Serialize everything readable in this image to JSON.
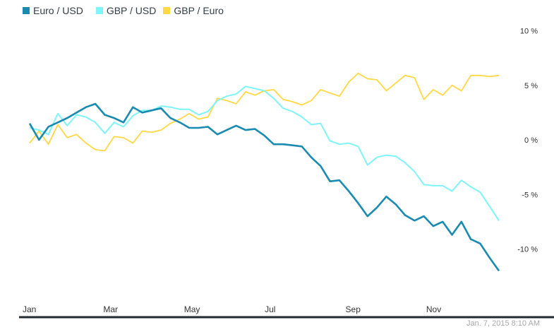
{
  "chart_data": {
    "type": "line",
    "title": "",
    "xlabel": "",
    "ylabel": "",
    "ylim": [
      -13,
      11
    ],
    "y_ticks": [
      "10 %",
      "5 %",
      "0 %",
      "-5 %",
      "-10 %"
    ],
    "y_tick_values": [
      10,
      5,
      0,
      -5,
      -10
    ],
    "x_ticks": [
      "Jan",
      "Mar",
      "May",
      "Jul",
      "Sep",
      "Nov"
    ],
    "x_tick_index": [
      0,
      8.6,
      17.2,
      25.8,
      34.4,
      43
    ],
    "grid": false,
    "legend_position": "top-left",
    "series": [
      {
        "name": "Euro / USD",
        "color": "#1a8bb0",
        "values": [
          1.5,
          0.0,
          1.2,
          1.6,
          2.0,
          2.5,
          3.0,
          3.3,
          2.3,
          2.0,
          1.6,
          3.0,
          2.5,
          2.7,
          2.9,
          2.0,
          1.6,
          1.1,
          1.1,
          1.2,
          0.5,
          0.9,
          1.3,
          0.9,
          1.0,
          0.4,
          -0.4,
          -0.4,
          -0.5,
          -0.6,
          -1.6,
          -2.4,
          -3.8,
          -3.7,
          -4.7,
          -5.8,
          -7.0,
          -6.2,
          -5.2,
          -5.9,
          -6.9,
          -7.4,
          -7.0,
          -7.9,
          -7.5,
          -8.7,
          -7.5,
          -9.1,
          -9.5,
          -10.8,
          -12.0
        ]
      },
      {
        "name": "GBP / USD",
        "color": "#7ff4fa",
        "values": [
          1.1,
          0.9,
          0.5,
          2.4,
          1.3,
          2.3,
          2.1,
          1.6,
          0.6,
          1.6,
          1.2,
          2.2,
          2.7,
          2.7,
          3.1,
          3.0,
          2.8,
          2.8,
          2.3,
          2.6,
          3.6,
          4.0,
          4.2,
          4.9,
          4.7,
          4.5,
          3.8,
          2.9,
          2.6,
          2.1,
          1.4,
          1.5,
          -0.1,
          -0.4,
          -0.3,
          -0.6,
          -2.3,
          -1.6,
          -1.4,
          -1.5,
          -2.1,
          -2.9,
          -4.1,
          -4.2,
          -4.2,
          -4.7,
          -3.7,
          -4.3,
          -4.8,
          -6.1,
          -7.4
        ]
      },
      {
        "name": "GBP / Euro",
        "color": "#ffd844",
        "values": [
          -0.3,
          0.8,
          -0.4,
          1.4,
          0.2,
          0.5,
          -0.3,
          -0.9,
          -1.0,
          0.3,
          0.2,
          -0.3,
          0.8,
          0.7,
          0.9,
          1.5,
          1.9,
          2.4,
          1.9,
          2.1,
          3.8,
          3.6,
          3.3,
          4.4,
          4.1,
          4.5,
          4.6,
          3.7,
          3.5,
          3.2,
          3.6,
          4.6,
          4.3,
          4.0,
          5.3,
          6.1,
          5.6,
          5.5,
          4.5,
          5.2,
          5.9,
          5.7,
          3.7,
          4.6,
          4.1,
          5.0,
          4.5,
          5.9,
          5.9,
          5.8,
          5.9
        ]
      }
    ]
  },
  "legend": {
    "items": [
      {
        "label": "Euro / USD",
        "color": "#1a8bb0"
      },
      {
        "label": "GBP / USD",
        "color": "#7ff4fa"
      },
      {
        "label": "GBP / Euro",
        "color": "#ffd844"
      }
    ]
  },
  "timestamp": "Jan. 7, 2015 8:10 AM"
}
